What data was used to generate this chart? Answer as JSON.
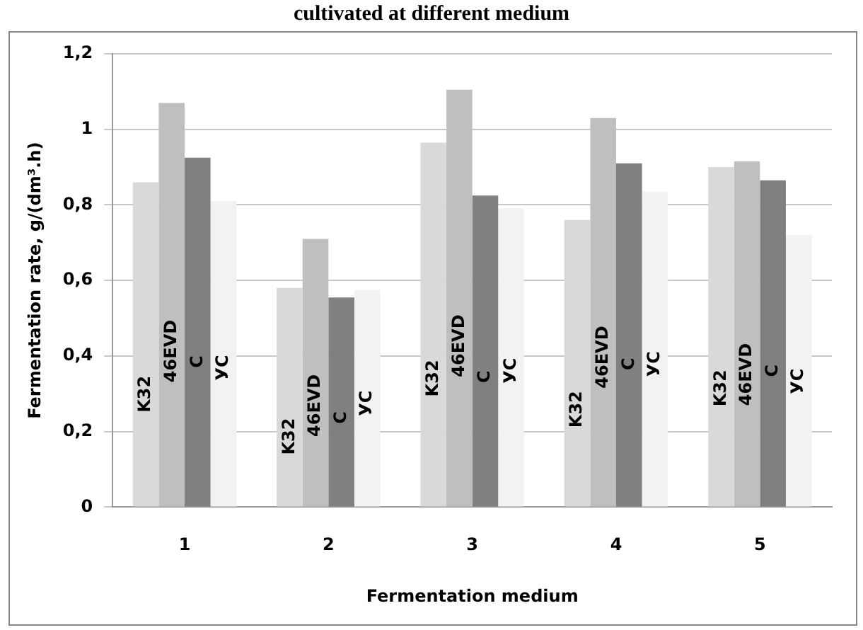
{
  "chart_data": {
    "type": "bar",
    "title": "cultivated at different medium",
    "xlabel": "Fermentation medium",
    "ylabel": "Fermentation rate, g/(dm³.h)",
    "categories": [
      "1",
      "2",
      "3",
      "4",
      "5"
    ],
    "series": [
      {
        "name": "K32",
        "color": "#d9d9d9",
        "values": [
          0.86,
          0.58,
          0.965,
          0.76,
          0.9
        ]
      },
      {
        "name": "46EVD",
        "color": "#bfbfbf",
        "values": [
          1.07,
          0.71,
          1.105,
          1.03,
          0.915
        ]
      },
      {
        "name": "C",
        "color": "#808080",
        "values": [
          0.925,
          0.555,
          0.825,
          0.91,
          0.865
        ]
      },
      {
        "name": "УС",
        "color": "#f2f2f2",
        "values": [
          0.81,
          0.575,
          0.79,
          0.835,
          0.72
        ]
      }
    ],
    "ylim": [
      0,
      1.2
    ],
    "yticks": [
      {
        "value": 0,
        "label": "0"
      },
      {
        "value": 0.2,
        "label": "0,2"
      },
      {
        "value": 0.4,
        "label": "0,4"
      },
      {
        "value": 0.6,
        "label": "0,6"
      },
      {
        "value": 0.8,
        "label": "0,8"
      },
      {
        "value": 1,
        "label": "1"
      },
      {
        "value": 1.2,
        "label": "1,2"
      }
    ],
    "grid": "y"
  }
}
